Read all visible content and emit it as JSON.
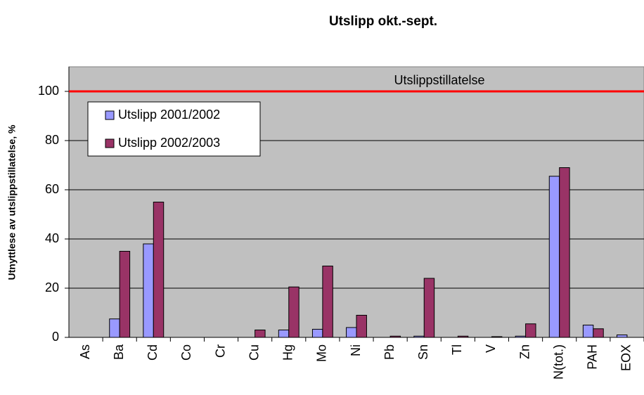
{
  "chart_data": {
    "type": "bar",
    "title": "Utslipp okt.-sept.",
    "y_label": "Utnyttlese av utslippstillatelse, %",
    "categories": [
      "As",
      "Ba",
      "Cd",
      "Co",
      "Cr",
      "Cu",
      "Hg",
      "Mo",
      "Ni",
      "Pb",
      "Sn",
      "Tl",
      "V",
      "Zn",
      "N(tot.)",
      "PAH",
      "EOX"
    ],
    "series": [
      {
        "name": "Utslipp 2001/2002",
        "color": "#9999ff",
        "values": [
          0,
          7.5,
          38,
          0,
          0,
          0,
          3,
          3.3,
          4,
          0,
          0.5,
          0,
          0,
          0.5,
          65.5,
          5,
          1
        ]
      },
      {
        "name": "Utslipp 2002/2003",
        "color": "#993366",
        "values": [
          0,
          35,
          55,
          0,
          0,
          3,
          20.5,
          29,
          9,
          0.5,
          24,
          0.5,
          0.3,
          5.5,
          69,
          3.5,
          0
        ]
      }
    ],
    "reference_line": {
      "label": "Utslippstillatelse",
      "value": 100,
      "color": "#ff0000"
    },
    "ylim": [
      0,
      110
    ],
    "yticks": [
      0,
      20,
      40,
      60,
      80,
      100
    ],
    "grid": true,
    "legend_position": "upper-left"
  }
}
